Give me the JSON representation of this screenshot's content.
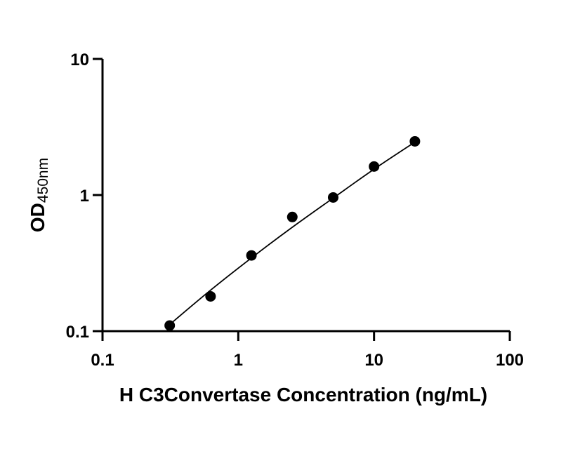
{
  "chart_data": {
    "type": "scatter",
    "title": "",
    "xlabel": "H C3Convertase Concentration (ng/mL)",
    "ylabel": "OD",
    "ylabel_sub": "450nm",
    "x_scale": "log",
    "y_scale": "log",
    "xlim": [
      0.1,
      100
    ],
    "ylim": [
      0.1,
      10
    ],
    "x_ticks": [
      0.1,
      1,
      10,
      100
    ],
    "x_tick_labels": [
      "0.1",
      "1",
      "10",
      "100"
    ],
    "y_ticks": [
      0.1,
      1,
      10
    ],
    "y_tick_labels": [
      "0.1",
      "1",
      "10"
    ],
    "grid": false,
    "series": [
      {
        "points": [
          {
            "x": 0.3125,
            "y": 0.11
          },
          {
            "x": 0.625,
            "y": 0.18
          },
          {
            "x": 1.25,
            "y": 0.36
          },
          {
            "x": 2.5,
            "y": 0.69
          },
          {
            "x": 5,
            "y": 0.96
          },
          {
            "x": 10,
            "y": 1.62
          },
          {
            "x": 20,
            "y": 2.48
          }
        ],
        "fit_curve": [
          {
            "x": 0.3125,
            "y": 0.112
          },
          {
            "x": 0.625,
            "y": 0.2
          },
          {
            "x": 1.25,
            "y": 0.345
          },
          {
            "x": 2.5,
            "y": 0.58
          },
          {
            "x": 5,
            "y": 0.95
          },
          {
            "x": 10,
            "y": 1.55
          },
          {
            "x": 20,
            "y": 2.45
          }
        ]
      }
    ]
  }
}
